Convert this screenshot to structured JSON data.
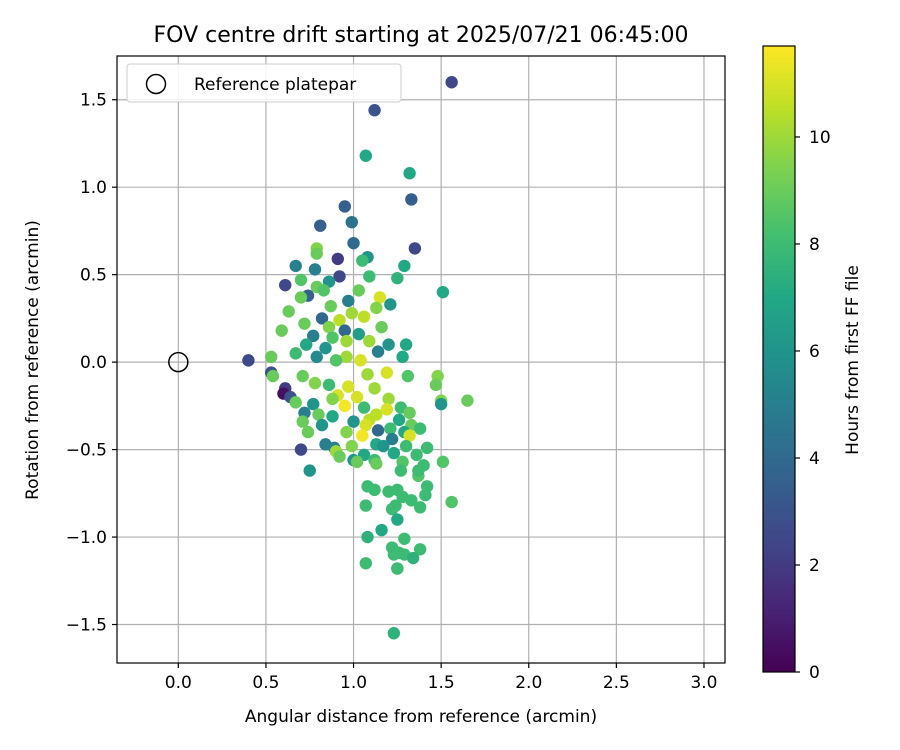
{
  "chart_data": {
    "type": "scatter",
    "title": "FOV centre drift starting at 2025/07/21 06:45:00",
    "xlabel": "Angular distance from reference (arcmin)",
    "ylabel": "Rotation from reference (arcmin)",
    "xlim": [
      -0.35,
      3.12
    ],
    "ylim": [
      -1.72,
      1.75
    ],
    "xticks": [
      "0.0",
      "0.5",
      "1.0",
      "1.5",
      "2.0",
      "2.5",
      "3.0"
    ],
    "yticks": [
      "1.5",
      "1.0",
      "0.5",
      "0.0",
      "−0.5",
      "−1.0",
      "−1.5"
    ],
    "grid": true,
    "legend": {
      "position": "top-left",
      "label": "Reference platepar"
    },
    "reference_point": {
      "x": 0.0,
      "y": 0.0
    },
    "colorbar": {
      "label": "Hours from first FF file",
      "range": [
        0,
        11.7
      ],
      "ticks": [
        "0",
        "2",
        "4",
        "6",
        "8",
        "10"
      ],
      "colormap": "viridis"
    },
    "points": [
      {
        "x": 1.56,
        "y": 1.6,
        "h": 2.5
      },
      {
        "x": 1.12,
        "y": 1.44,
        "h": 3
      },
      {
        "x": 1.07,
        "y": 1.18,
        "h": 7
      },
      {
        "x": 1.32,
        "y": 1.08,
        "h": 7
      },
      {
        "x": 0.95,
        "y": 0.89,
        "h": 3.5
      },
      {
        "x": 1.33,
        "y": 0.93,
        "h": 3.5
      },
      {
        "x": 0.81,
        "y": 0.78,
        "h": 3.5
      },
      {
        "x": 0.99,
        "y": 0.8,
        "h": 4.5
      },
      {
        "x": 1.0,
        "y": 0.68,
        "h": 4
      },
      {
        "x": 1.35,
        "y": 0.65,
        "h": 2.5
      },
      {
        "x": 0.79,
        "y": 0.65,
        "h": 9.5
      },
      {
        "x": 0.79,
        "y": 0.62,
        "h": 9
      },
      {
        "x": 1.08,
        "y": 0.6,
        "h": 6
      },
      {
        "x": 1.05,
        "y": 0.58,
        "h": 8
      },
      {
        "x": 0.91,
        "y": 0.59,
        "h": 2
      },
      {
        "x": 0.67,
        "y": 0.55,
        "h": 5
      },
      {
        "x": 0.78,
        "y": 0.53,
        "h": 5
      },
      {
        "x": 1.29,
        "y": 0.55,
        "h": 7
      },
      {
        "x": 0.92,
        "y": 0.49,
        "h": 2.5
      },
      {
        "x": 1.09,
        "y": 0.49,
        "h": 8
      },
      {
        "x": 1.25,
        "y": 0.48,
        "h": 7.5
      },
      {
        "x": 0.7,
        "y": 0.47,
        "h": 8.5
      },
      {
        "x": 0.86,
        "y": 0.46,
        "h": 6
      },
      {
        "x": 0.61,
        "y": 0.44,
        "h": 2.5
      },
      {
        "x": 0.79,
        "y": 0.43,
        "h": 9
      },
      {
        "x": 0.83,
        "y": 0.41,
        "h": 8.5
      },
      {
        "x": 0.74,
        "y": 0.38,
        "h": 3.5
      },
      {
        "x": 1.51,
        "y": 0.4,
        "h": 7
      },
      {
        "x": 1.03,
        "y": 0.41,
        "h": 9
      },
      {
        "x": 0.7,
        "y": 0.37,
        "h": 9
      },
      {
        "x": 0.97,
        "y": 0.35,
        "h": 5
      },
      {
        "x": 1.15,
        "y": 0.37,
        "h": 11
      },
      {
        "x": 1.21,
        "y": 0.33,
        "h": 6
      },
      {
        "x": 0.87,
        "y": 0.32,
        "h": 9
      },
      {
        "x": 1.13,
        "y": 0.31,
        "h": 9.5
      },
      {
        "x": 0.63,
        "y": 0.29,
        "h": 9
      },
      {
        "x": 0.99,
        "y": 0.28,
        "h": 10
      },
      {
        "x": 1.06,
        "y": 0.26,
        "h": 10.5
      },
      {
        "x": 0.82,
        "y": 0.25,
        "h": 4
      },
      {
        "x": 0.92,
        "y": 0.24,
        "h": 10.5
      },
      {
        "x": 0.72,
        "y": 0.22,
        "h": 9
      },
      {
        "x": 0.86,
        "y": 0.2,
        "h": 9.5
      },
      {
        "x": 1.16,
        "y": 0.2,
        "h": 9
      },
      {
        "x": 0.95,
        "y": 0.18,
        "h": 4
      },
      {
        "x": 0.59,
        "y": 0.18,
        "h": 9
      },
      {
        "x": 1.03,
        "y": 0.16,
        "h": 6.5
      },
      {
        "x": 0.77,
        "y": 0.15,
        "h": 5
      },
      {
        "x": 0.88,
        "y": 0.14,
        "h": 8.5
      },
      {
        "x": 1.09,
        "y": 0.12,
        "h": 10
      },
      {
        "x": 0.96,
        "y": 0.12,
        "h": 10
      },
      {
        "x": 0.73,
        "y": 0.1,
        "h": 7
      },
      {
        "x": 1.2,
        "y": 0.1,
        "h": 6
      },
      {
        "x": 1.3,
        "y": 0.1,
        "h": 7
      },
      {
        "x": 0.84,
        "y": 0.08,
        "h": 6
      },
      {
        "x": 1.14,
        "y": 0.06,
        "h": 5
      },
      {
        "x": 0.67,
        "y": 0.05,
        "h": 8
      },
      {
        "x": 0.79,
        "y": 0.03,
        "h": 5.5
      },
      {
        "x": 0.96,
        "y": 0.03,
        "h": 10
      },
      {
        "x": 1.28,
        "y": 0.03,
        "h": 7
      },
      {
        "x": 0.4,
        "y": 0.01,
        "h": 2.5
      },
      {
        "x": 1.04,
        "y": 0.01,
        "h": 11
      },
      {
        "x": 0.53,
        "y": 0.03,
        "h": 9
      },
      {
        "x": 0.9,
        "y": 0.01,
        "h": 8.5
      },
      {
        "x": 0.53,
        "y": -0.06,
        "h": 3
      },
      {
        "x": 0.71,
        "y": -0.08,
        "h": 9
      },
      {
        "x": 1.19,
        "y": -0.06,
        "h": 11
      },
      {
        "x": 1.08,
        "y": -0.07,
        "h": 10
      },
      {
        "x": 1.48,
        "y": -0.08,
        "h": 9.5
      },
      {
        "x": 0.54,
        "y": -0.08,
        "h": 9
      },
      {
        "x": 1.31,
        "y": -0.08,
        "h": 8.5
      },
      {
        "x": 0.78,
        "y": -0.12,
        "h": 9.5
      },
      {
        "x": 0.86,
        "y": -0.13,
        "h": 8
      },
      {
        "x": 0.97,
        "y": -0.14,
        "h": 11
      },
      {
        "x": 1.12,
        "y": -0.15,
        "h": 10
      },
      {
        "x": 1.47,
        "y": -0.13,
        "h": 9
      },
      {
        "x": 0.61,
        "y": -0.15,
        "h": 2
      },
      {
        "x": 0.6,
        "y": -0.18,
        "h": 0.5
      },
      {
        "x": 0.64,
        "y": -0.2,
        "h": 3
      },
      {
        "x": 0.91,
        "y": -0.19,
        "h": 11
      },
      {
        "x": 1.02,
        "y": -0.2,
        "h": 11
      },
      {
        "x": 0.88,
        "y": -0.21,
        "h": 9.5
      },
      {
        "x": 1.2,
        "y": -0.21,
        "h": 10
      },
      {
        "x": 1.5,
        "y": -0.22,
        "h": 9.5
      },
      {
        "x": 1.65,
        "y": -0.22,
        "h": 9
      },
      {
        "x": 0.67,
        "y": -0.23,
        "h": 9
      },
      {
        "x": 0.77,
        "y": -0.24,
        "h": 6
      },
      {
        "x": 0.95,
        "y": -0.25,
        "h": 11.5
      },
      {
        "x": 1.06,
        "y": -0.26,
        "h": 8
      },
      {
        "x": 1.27,
        "y": -0.26,
        "h": 8
      },
      {
        "x": 1.5,
        "y": -0.24,
        "h": 6
      },
      {
        "x": 0.72,
        "y": -0.29,
        "h": 5
      },
      {
        "x": 0.8,
        "y": -0.3,
        "h": 9
      },
      {
        "x": 0.88,
        "y": -0.31,
        "h": 7
      },
      {
        "x": 1.13,
        "y": -0.3,
        "h": 10.5
      },
      {
        "x": 1.19,
        "y": -0.27,
        "h": 11
      },
      {
        "x": 1.32,
        "y": -0.29,
        "h": 9
      },
      {
        "x": 1.09,
        "y": -0.33,
        "h": 10.5
      },
      {
        "x": 0.71,
        "y": -0.34,
        "h": 9
      },
      {
        "x": 1.0,
        "y": -0.34,
        "h": 6
      },
      {
        "x": 1.26,
        "y": -0.33,
        "h": 7
      },
      {
        "x": 0.82,
        "y": -0.36,
        "h": 6
      },
      {
        "x": 1.07,
        "y": -0.36,
        "h": 11
      },
      {
        "x": 1.33,
        "y": -0.36,
        "h": 9
      },
      {
        "x": 1.21,
        "y": -0.38,
        "h": 8
      },
      {
        "x": 0.74,
        "y": -0.4,
        "h": 9
      },
      {
        "x": 0.96,
        "y": -0.4,
        "h": 9.5
      },
      {
        "x": 1.14,
        "y": -0.39,
        "h": 4
      },
      {
        "x": 1.29,
        "y": -0.4,
        "h": 7
      },
      {
        "x": 1.38,
        "y": -0.38,
        "h": 8
      },
      {
        "x": 1.05,
        "y": -0.42,
        "h": 11.5
      },
      {
        "x": 1.32,
        "y": -0.42,
        "h": 11
      },
      {
        "x": 1.22,
        "y": -0.44,
        "h": 5
      },
      {
        "x": 0.84,
        "y": -0.47,
        "h": 5
      },
      {
        "x": 1.13,
        "y": -0.47,
        "h": 7
      },
      {
        "x": 1.42,
        "y": -0.49,
        "h": 8
      },
      {
        "x": 0.7,
        "y": -0.5,
        "h": 2.5
      },
      {
        "x": 0.89,
        "y": -0.49,
        "h": 5
      },
      {
        "x": 0.99,
        "y": -0.48,
        "h": 9.5
      },
      {
        "x": 1.17,
        "y": -0.48,
        "h": 6
      },
      {
        "x": 1.3,
        "y": -0.48,
        "h": 8
      },
      {
        "x": 0.9,
        "y": -0.51,
        "h": 10
      },
      {
        "x": 1.06,
        "y": -0.53,
        "h": 7
      },
      {
        "x": 1.23,
        "y": -0.52,
        "h": 7
      },
      {
        "x": 1.36,
        "y": -0.53,
        "h": 8
      },
      {
        "x": 0.92,
        "y": -0.54,
        "h": 9
      },
      {
        "x": 1.0,
        "y": -0.56,
        "h": 6
      },
      {
        "x": 1.12,
        "y": -0.56,
        "h": 8
      },
      {
        "x": 1.28,
        "y": -0.57,
        "h": 8.5
      },
      {
        "x": 1.51,
        "y": -0.57,
        "h": 8.5
      },
      {
        "x": 1.02,
        "y": -0.57,
        "h": 9
      },
      {
        "x": 1.13,
        "y": -0.58,
        "h": 9
      },
      {
        "x": 1.4,
        "y": -0.59,
        "h": 8
      },
      {
        "x": 0.75,
        "y": -0.62,
        "h": 6
      },
      {
        "x": 1.27,
        "y": -0.62,
        "h": 8
      },
      {
        "x": 1.37,
        "y": -0.65,
        "h": 8.5
      },
      {
        "x": 1.37,
        "y": -0.62,
        "h": 8
      },
      {
        "x": 1.08,
        "y": -0.71,
        "h": 8
      },
      {
        "x": 1.12,
        "y": -0.73,
        "h": 8
      },
      {
        "x": 1.2,
        "y": -0.74,
        "h": 8
      },
      {
        "x": 1.25,
        "y": -0.73,
        "h": 8
      },
      {
        "x": 1.42,
        "y": -0.71,
        "h": 8
      },
      {
        "x": 1.28,
        "y": -0.77,
        "h": 8
      },
      {
        "x": 1.41,
        "y": -0.76,
        "h": 8
      },
      {
        "x": 1.33,
        "y": -0.79,
        "h": 8
      },
      {
        "x": 1.07,
        "y": -0.82,
        "h": 8
      },
      {
        "x": 1.22,
        "y": -0.84,
        "h": 8
      },
      {
        "x": 1.24,
        "y": -0.82,
        "h": 8
      },
      {
        "x": 1.38,
        "y": -0.83,
        "h": 8
      },
      {
        "x": 1.56,
        "y": -0.8,
        "h": 8.5
      },
      {
        "x": 1.25,
        "y": -0.9,
        "h": 7
      },
      {
        "x": 1.16,
        "y": -0.96,
        "h": 7
      },
      {
        "x": 1.08,
        "y": -1.0,
        "h": 7.5
      },
      {
        "x": 1.29,
        "y": -1.01,
        "h": 8
      },
      {
        "x": 1.22,
        "y": -1.06,
        "h": 8
      },
      {
        "x": 1.26,
        "y": -1.09,
        "h": 8
      },
      {
        "x": 1.38,
        "y": -1.07,
        "h": 8
      },
      {
        "x": 1.23,
        "y": -1.1,
        "h": 8
      },
      {
        "x": 1.29,
        "y": -1.1,
        "h": 8
      },
      {
        "x": 1.34,
        "y": -1.12,
        "h": 7.5
      },
      {
        "x": 1.07,
        "y": -1.15,
        "h": 8
      },
      {
        "x": 1.25,
        "y": -1.18,
        "h": 7.5
      },
      {
        "x": 1.25,
        "y": -1.18,
        "h": 8
      },
      {
        "x": 1.23,
        "y": -1.55,
        "h": 7.5
      }
    ]
  }
}
